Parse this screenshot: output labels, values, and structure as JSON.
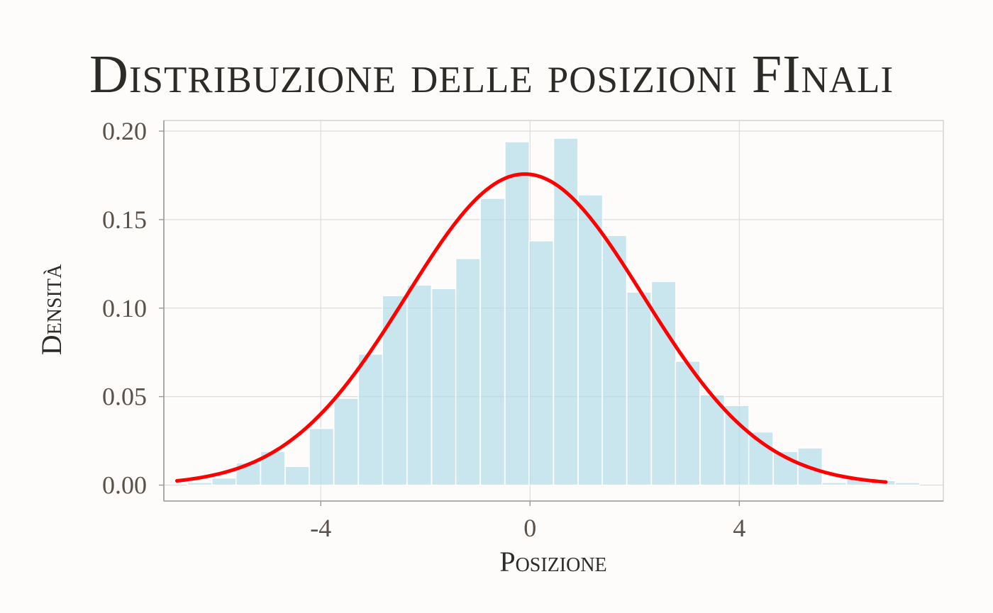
{
  "chart_data": {
    "type": "bar",
    "title": "Distribuzione delle posizioni FInali",
    "xlabel": "Posizione",
    "ylabel": "Densità",
    "xlim": [
      -7.0,
      7.9
    ],
    "ylim": [
      -0.009,
      0.206
    ],
    "x_ticks": [
      {
        "value": -4,
        "label": "-4"
      },
      {
        "value": 0,
        "label": "0"
      },
      {
        "value": 4,
        "label": "4"
      }
    ],
    "y_ticks": [
      {
        "value": 0.0,
        "label": "0.00"
      },
      {
        "value": 0.05,
        "label": "0.05"
      },
      {
        "value": 0.1,
        "label": "0.10"
      },
      {
        "value": 0.15,
        "label": "0.15"
      },
      {
        "value": 0.2,
        "label": "0.20"
      }
    ],
    "grid": true,
    "histogram": {
      "bin_width": 0.466,
      "bin_starts": [
        -6.55,
        -6.08,
        -5.62,
        -5.15,
        -4.68,
        -4.22,
        -3.75,
        -3.28,
        -2.82,
        -2.35,
        -1.88,
        -1.42,
        -0.95,
        -0.48,
        -0.02,
        0.45,
        0.92,
        1.38,
        1.85,
        2.32,
        2.78,
        3.25,
        3.72,
        4.18,
        4.65,
        5.12,
        5.58,
        6.05,
        6.52,
        6.98
      ],
      "values": [
        0.0015,
        0.004,
        0.0125,
        0.019,
        0.0105,
        0.032,
        0.049,
        0.074,
        0.107,
        0.113,
        0.111,
        0.128,
        0.162,
        0.194,
        0.138,
        0.196,
        0.164,
        0.141,
        0.109,
        0.115,
        0.07,
        0.051,
        0.045,
        0.03,
        0.019,
        0.021,
        0.0015,
        0.0035,
        0.0025,
        0.0015
      ],
      "color": "#add8e6"
    },
    "series": [
      {
        "type": "line",
        "mean": -0.1,
        "sd": 2.27,
        "x_range": [
          -6.75,
          6.8
        ],
        "color": "#ff0000"
      }
    ]
  }
}
